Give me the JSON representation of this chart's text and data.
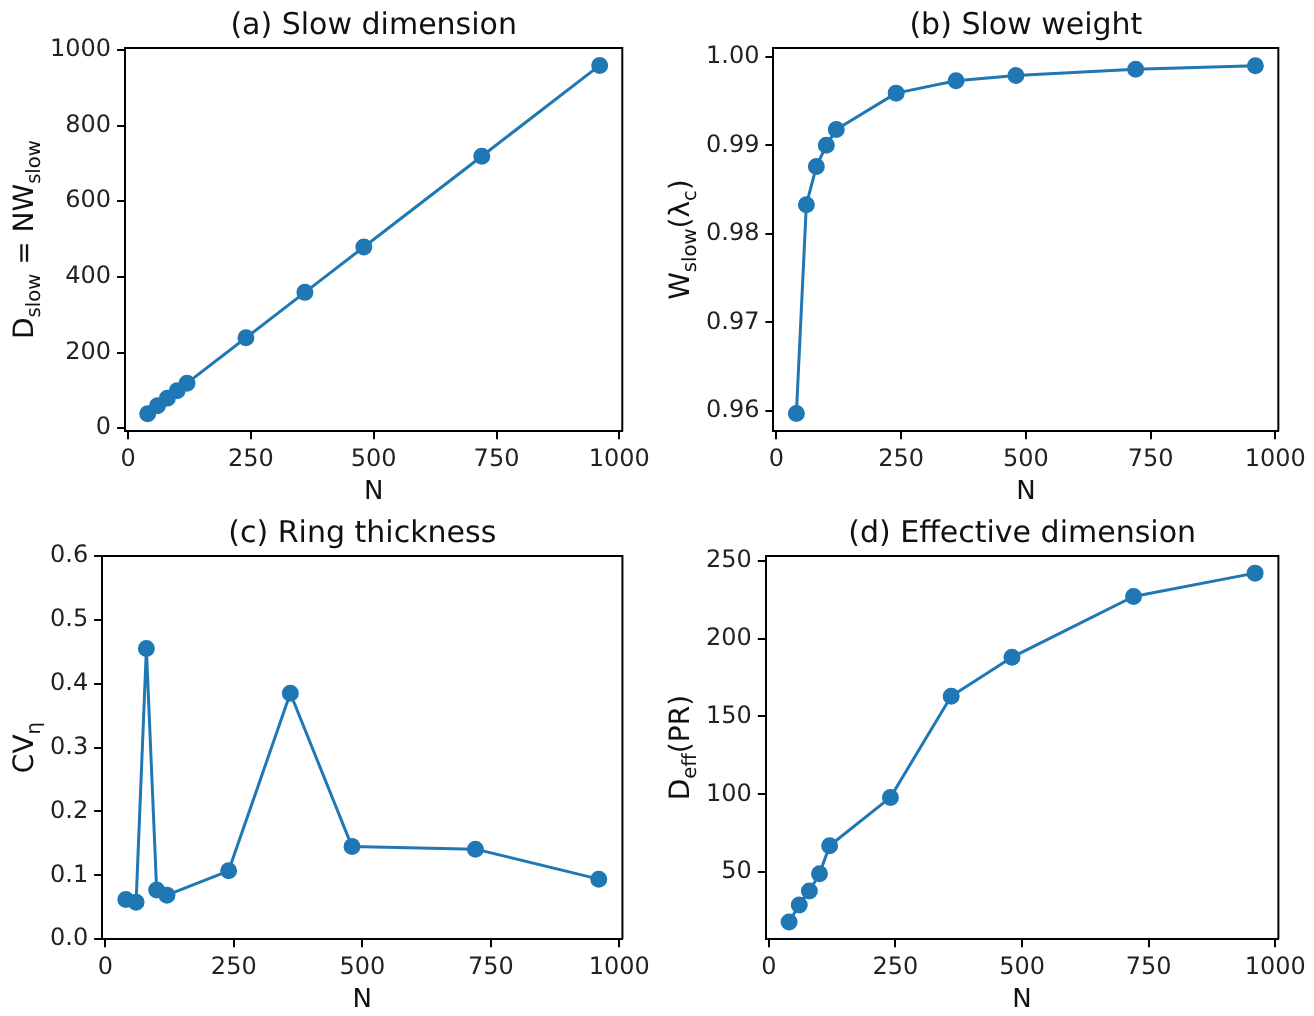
{
  "chart_data": [
    {
      "type": "line",
      "title": "(a) Slow dimension",
      "xlabel": "N",
      "ylabel": "D$_{slow}$ = NW$_{slow}$",
      "x": [
        40,
        60,
        80,
        100,
        120,
        240,
        360,
        480,
        720,
        960
      ],
      "series": [
        {
          "color": "#1f77b4",
          "values": [
            38,
            59,
            79,
            99,
            119,
            239,
            359,
            479,
            719,
            959
          ]
        }
      ],
      "xlim": [
        -6,
        1006
      ],
      "xticks": [
        0,
        250,
        500,
        750,
        1000
      ],
      "ylim": [
        -8,
        1005
      ],
      "yticks": [
        0,
        200,
        400,
        600,
        800,
        1000
      ],
      "grid": false,
      "legend": false,
      "marker": "circle",
      "line_style": "solid"
    },
    {
      "type": "line",
      "title": "(b) Slow weight",
      "xlabel": "N",
      "ylabel": "W$_{slow}$(λ$_{c}$)",
      "x": [
        40,
        60,
        80,
        100,
        120,
        240,
        360,
        480,
        720,
        960
      ],
      "series": [
        {
          "color": "#1f77b4",
          "values": [
            0.9597,
            0.9833,
            0.9876,
            0.99,
            0.9918,
            0.9959,
            0.9973,
            0.9979,
            0.9986,
            0.999
          ]
        }
      ],
      "xlim": [
        -6,
        1006
      ],
      "xticks": [
        0,
        250,
        500,
        750,
        1000
      ],
      "ylim": [
        0.9577,
        1.001
      ],
      "yticks": [
        {
          "value": 0.96,
          "label": "0.96"
        },
        {
          "value": 0.97,
          "label": "0.97"
        },
        {
          "value": 0.98,
          "label": "0.98"
        },
        {
          "value": 0.99,
          "label": "0.99"
        },
        {
          "value": 1,
          "label": "1.00"
        }
      ],
      "grid": false,
      "legend": false,
      "marker": "circle",
      "line_style": "solid"
    },
    {
      "type": "line",
      "title": "(c) Ring thickness",
      "xlabel": "N",
      "ylabel": "CV$_{η}$",
      "x": [
        40,
        60,
        80,
        100,
        120,
        240,
        360,
        480,
        720,
        960
      ],
      "series": [
        {
          "color": "#1f77b4",
          "values": [
            0.062,
            0.058,
            0.455,
            0.077,
            0.069,
            0.107,
            0.385,
            0.145,
            0.141,
            0.094
          ]
        }
      ],
      "xlim": [
        -6,
        1006
      ],
      "xticks": [
        0,
        250,
        500,
        750,
        1000
      ],
      "ylim": [
        0,
        0.6
      ],
      "yticks": [
        {
          "value": 0,
          "label": "0.0"
        },
        0.1,
        0.2,
        0.3,
        0.4,
        0.5,
        0.6
      ],
      "grid": false,
      "legend": false,
      "marker": "circle",
      "line_style": "solid"
    },
    {
      "type": "line",
      "title": "(d) Effective dimension",
      "xlabel": "N",
      "ylabel": "D$_{eff}$(PR)",
      "x": [
        40,
        60,
        80,
        100,
        120,
        240,
        360,
        480,
        720,
        960
      ],
      "series": [
        {
          "color": "#1f77b4",
          "values": [
            18,
            29,
            38,
            49,
            67,
            98,
            163,
            188,
            227,
            242
          ]
        }
      ],
      "xlim": [
        -6,
        1006
      ],
      "xticks": [
        0,
        250,
        500,
        750,
        1000
      ],
      "ylim": [
        7,
        253
      ],
      "yticks": [
        50,
        100,
        150,
        200,
        250
      ],
      "grid": false,
      "legend": false,
      "marker": "circle",
      "line_style": "solid"
    }
  ]
}
